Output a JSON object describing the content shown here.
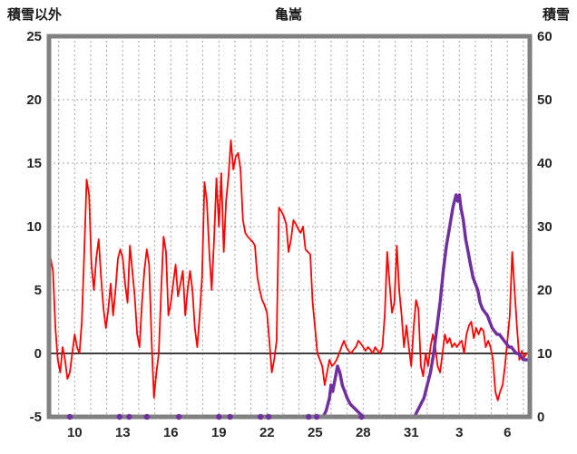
{
  "header": {
    "left_axis_title": "積雪以外",
    "title": "亀嵩",
    "right_axis_title": "積雪"
  },
  "colors": {
    "grid": "#a3a3a3",
    "zero_line": "#3f3f3f",
    "border": "#808080",
    "tick_text": "#262626",
    "background": "#ffffff",
    "temperature": "#ff0000",
    "snow": "#7030a0"
  },
  "chart_data": {
    "type": "line",
    "title": "亀嵩",
    "left_axis": {
      "label": "積雪以外",
      "min": -5,
      "max": 25,
      "ticks": [
        25,
        20,
        15,
        10,
        5,
        0,
        -5
      ]
    },
    "right_axis": {
      "label": "積雪",
      "min": 0,
      "max": 60,
      "ticks": [
        60,
        50,
        40,
        30,
        20,
        10,
        0
      ]
    },
    "x_axis": {
      "min": 8.4,
      "max": 38.4,
      "day_grid_start": 9,
      "day_grid_end": 38,
      "tick_positions": [
        10,
        13,
        16,
        19,
        22,
        25,
        28,
        31,
        34,
        37
      ],
      "tick_labels": [
        "10",
        "13",
        "16",
        "19",
        "22",
        "25",
        "28",
        "31",
        "3",
        "6"
      ]
    },
    "grid": "dashed",
    "legend": "none",
    "series": [
      {
        "name": "temperature",
        "axis": "left",
        "color": "#ff0000",
        "width": 1.8,
        "points": [
          [
            8.4,
            2.5
          ],
          [
            8.5,
            7.5
          ],
          [
            8.65,
            6.5
          ],
          [
            8.8,
            2
          ],
          [
            8.95,
            -0.5
          ],
          [
            9.1,
            -1.5
          ],
          [
            9.25,
            0.5
          ],
          [
            9.4,
            -0.5
          ],
          [
            9.55,
            -2
          ],
          [
            9.7,
            -1.5
          ],
          [
            9.85,
            0
          ],
          [
            10.0,
            1.5
          ],
          [
            10.15,
            0.5
          ],
          [
            10.3,
            0
          ],
          [
            10.45,
            2.5
          ],
          [
            10.6,
            8
          ],
          [
            10.75,
            13.7
          ],
          [
            10.9,
            12.5
          ],
          [
            11.05,
            7
          ],
          [
            11.2,
            5
          ],
          [
            11.35,
            7.5
          ],
          [
            11.5,
            9
          ],
          [
            11.65,
            6
          ],
          [
            11.8,
            3.5
          ],
          [
            11.95,
            2
          ],
          [
            12.1,
            3.5
          ],
          [
            12.25,
            5.5
          ],
          [
            12.4,
            3
          ],
          [
            12.55,
            5
          ],
          [
            12.7,
            7.5
          ],
          [
            12.85,
            8.2
          ],
          [
            13.0,
            7.5
          ],
          [
            13.15,
            5.5
          ],
          [
            13.3,
            4
          ],
          [
            13.45,
            8.5
          ],
          [
            13.6,
            6.5
          ],
          [
            13.75,
            4.5
          ],
          [
            13.9,
            1.5
          ],
          [
            14.05,
            0.5
          ],
          [
            14.2,
            4
          ],
          [
            14.35,
            6.5
          ],
          [
            14.5,
            8.2
          ],
          [
            14.65,
            7
          ],
          [
            14.8,
            1
          ],
          [
            14.95,
            -3.5
          ],
          [
            15.1,
            -1.5
          ],
          [
            15.25,
            0
          ],
          [
            15.4,
            5
          ],
          [
            15.55,
            9.2
          ],
          [
            15.7,
            8
          ],
          [
            15.85,
            3
          ],
          [
            16.0,
            4
          ],
          [
            16.15,
            5.5
          ],
          [
            16.3,
            7
          ],
          [
            16.45,
            4.5
          ],
          [
            16.6,
            5.5
          ],
          [
            16.75,
            6.5
          ],
          [
            16.9,
            3
          ],
          [
            17.05,
            5
          ],
          [
            17.2,
            6.5
          ],
          [
            17.35,
            5
          ],
          [
            17.5,
            2
          ],
          [
            17.65,
            0.5
          ],
          [
            17.8,
            3
          ],
          [
            17.95,
            6
          ],
          [
            18.1,
            13.5
          ],
          [
            18.25,
            12
          ],
          [
            18.4,
            8
          ],
          [
            18.55,
            5
          ],
          [
            18.7,
            9
          ],
          [
            18.85,
            13.8
          ],
          [
            19.0,
            10
          ],
          [
            19.15,
            14.2
          ],
          [
            19.3,
            8
          ],
          [
            19.45,
            12
          ],
          [
            19.6,
            14
          ],
          [
            19.75,
            16.8
          ],
          [
            19.9,
            14.5
          ],
          [
            20.05,
            15.5
          ],
          [
            20.2,
            15.8
          ],
          [
            20.35,
            14.5
          ],
          [
            20.5,
            10.5
          ],
          [
            20.65,
            9.5
          ],
          [
            20.8,
            9.2
          ],
          [
            20.95,
            9
          ],
          [
            21.1,
            8.8
          ],
          [
            21.25,
            8.5
          ],
          [
            21.4,
            6
          ],
          [
            21.55,
            5
          ],
          [
            21.7,
            4.2
          ],
          [
            21.85,
            3.8
          ],
          [
            22.0,
            3.2
          ],
          [
            22.15,
            1
          ],
          [
            22.3,
            -1.5
          ],
          [
            22.45,
            -0.5
          ],
          [
            22.6,
            1
          ],
          [
            22.75,
            11.5
          ],
          [
            22.9,
            11.2
          ],
          [
            23.05,
            10.8
          ],
          [
            23.2,
            10.2
          ],
          [
            23.35,
            8
          ],
          [
            23.5,
            9
          ],
          [
            23.65,
            10.5
          ],
          [
            23.8,
            10.2
          ],
          [
            23.95,
            9.8
          ],
          [
            24.1,
            9.5
          ],
          [
            24.25,
            10
          ],
          [
            24.4,
            8.2
          ],
          [
            24.55,
            8
          ],
          [
            24.7,
            7.8
          ],
          [
            24.85,
            4
          ],
          [
            25.0,
            2
          ],
          [
            25.15,
            0
          ],
          [
            25.3,
            -0.5
          ],
          [
            25.45,
            -1
          ],
          [
            25.6,
            -2.5
          ],
          [
            25.75,
            -1.5
          ],
          [
            25.9,
            -0.5
          ],
          [
            26.05,
            -1
          ],
          [
            26.2,
            -0.8
          ],
          [
            26.35,
            -0.5
          ],
          [
            26.5,
            0
          ],
          [
            26.65,
            0.5
          ],
          [
            26.8,
            1
          ],
          [
            26.95,
            0.5
          ],
          [
            27.1,
            0.2
          ],
          [
            27.25,
            0
          ],
          [
            27.4,
            0.3
          ],
          [
            27.55,
            0.5
          ],
          [
            27.7,
            1
          ],
          [
            27.85,
            0.8
          ],
          [
            28.0,
            0.5
          ],
          [
            28.15,
            0.2
          ],
          [
            28.3,
            0.5
          ],
          [
            28.45,
            0.3
          ],
          [
            28.6,
            0
          ],
          [
            28.75,
            0.5
          ],
          [
            28.9,
            0.2
          ],
          [
            29.05,
            0
          ],
          [
            29.2,
            0.5
          ],
          [
            29.35,
            3
          ],
          [
            29.5,
            8
          ],
          [
            29.65,
            5.5
          ],
          [
            29.8,
            3.2
          ],
          [
            29.95,
            4
          ],
          [
            30.1,
            8.5
          ],
          [
            30.25,
            5
          ],
          [
            30.4,
            3
          ],
          [
            30.55,
            0.5
          ],
          [
            30.7,
            2.2
          ],
          [
            30.85,
            0.5
          ],
          [
            31.0,
            -1
          ],
          [
            31.15,
            2
          ],
          [
            31.3,
            4.2
          ],
          [
            31.45,
            3.5
          ],
          [
            31.6,
            -1
          ],
          [
            31.75,
            -1.8
          ],
          [
            31.9,
            0
          ],
          [
            32.05,
            -1
          ],
          [
            32.2,
            0.5
          ],
          [
            32.35,
            1.5
          ],
          [
            32.5,
            0.5
          ],
          [
            32.65,
            -1
          ],
          [
            32.8,
            -1.5
          ],
          [
            32.95,
            0
          ],
          [
            33.1,
            1.5
          ],
          [
            33.25,
            0.8
          ],
          [
            33.4,
            1.2
          ],
          [
            33.55,
            0.5
          ],
          [
            33.7,
            0.8
          ],
          [
            33.85,
            0.5
          ],
          [
            34.0,
            0.8
          ],
          [
            34.15,
            1
          ],
          [
            34.3,
            0
          ],
          [
            34.45,
            1.5
          ],
          [
            34.6,
            2.2
          ],
          [
            34.75,
            2.5
          ],
          [
            34.9,
            1.2
          ],
          [
            35.05,
            2
          ],
          [
            35.2,
            1.5
          ],
          [
            35.35,
            2
          ],
          [
            35.5,
            1.8
          ],
          [
            35.65,
            0.5
          ],
          [
            35.8,
            1
          ],
          [
            35.95,
            0.5
          ],
          [
            36.1,
            -0.5
          ],
          [
            36.25,
            -3
          ],
          [
            36.4,
            -3.7
          ],
          [
            36.55,
            -3
          ],
          [
            36.7,
            -2.5
          ],
          [
            36.85,
            -1
          ],
          [
            37.0,
            1
          ],
          [
            37.15,
            3
          ],
          [
            37.3,
            8
          ],
          [
            37.45,
            5
          ],
          [
            37.6,
            2
          ],
          [
            37.75,
            -0.5
          ],
          [
            37.9,
            0.2
          ],
          [
            38.05,
            -0.3
          ],
          [
            38.2,
            0
          ]
        ]
      },
      {
        "name": "snow-depth",
        "axis": "right",
        "color": "#7030a0",
        "width": 3.5,
        "points": [
          [
            8.4,
            0
          ],
          [
            25.5,
            0
          ],
          [
            25.7,
            1
          ],
          [
            25.9,
            3
          ],
          [
            26.0,
            5
          ],
          [
            26.1,
            4
          ],
          [
            26.25,
            6
          ],
          [
            26.4,
            8
          ],
          [
            26.55,
            7
          ],
          [
            26.7,
            5
          ],
          [
            26.85,
            4
          ],
          [
            27.0,
            3
          ],
          [
            27.2,
            2
          ],
          [
            27.4,
            1.5
          ],
          [
            27.6,
            1
          ],
          [
            27.8,
            0.5
          ],
          [
            28.0,
            0
          ],
          [
            31.2,
            0
          ],
          [
            31.4,
            1
          ],
          [
            31.6,
            2
          ],
          [
            31.8,
            3
          ],
          [
            32.0,
            5
          ],
          [
            32.2,
            7
          ],
          [
            32.4,
            10
          ],
          [
            32.6,
            14
          ],
          [
            32.8,
            18
          ],
          [
            33.0,
            23
          ],
          [
            33.2,
            27
          ],
          [
            33.4,
            30
          ],
          [
            33.6,
            33
          ],
          [
            33.8,
            35
          ],
          [
            33.9,
            34
          ],
          [
            34.0,
            35
          ],
          [
            34.1,
            33
          ],
          [
            34.25,
            31
          ],
          [
            34.4,
            28
          ],
          [
            34.55,
            26
          ],
          [
            34.7,
            24
          ],
          [
            34.85,
            22
          ],
          [
            35.0,
            21
          ],
          [
            35.15,
            20
          ],
          [
            35.3,
            18
          ],
          [
            35.45,
            17
          ],
          [
            35.6,
            16.5
          ],
          [
            35.75,
            16
          ],
          [
            35.9,
            15
          ],
          [
            36.05,
            14
          ],
          [
            36.2,
            13.5
          ],
          [
            36.35,
            13
          ],
          [
            36.5,
            13
          ],
          [
            36.65,
            12.5
          ],
          [
            36.8,
            12
          ],
          [
            36.95,
            11.5
          ],
          [
            37.1,
            11
          ],
          [
            37.25,
            11
          ],
          [
            37.4,
            10.5
          ],
          [
            37.55,
            10
          ],
          [
            37.7,
            10
          ],
          [
            37.85,
            9.5
          ],
          [
            38.0,
            9
          ],
          [
            38.15,
            9
          ],
          [
            38.3,
            9
          ]
        ]
      }
    ],
    "snow_zero_markers": {
      "color": "#7030a0",
      "value": 0,
      "days": [
        9.7,
        12.8,
        13.4,
        14.5,
        16.5,
        19.0,
        19.7,
        21.6,
        22.1,
        24.6,
        25.1,
        27.9
      ]
    }
  }
}
